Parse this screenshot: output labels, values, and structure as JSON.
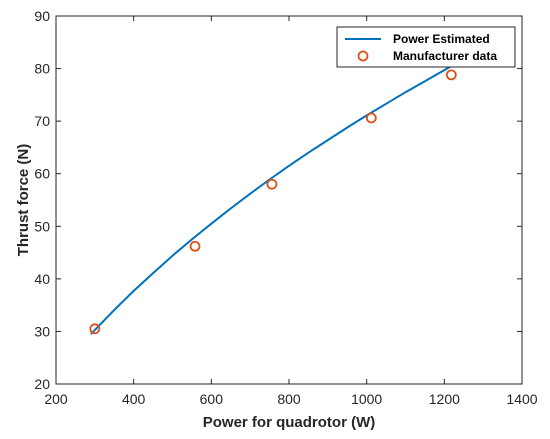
{
  "chart_data": {
    "type": "line",
    "xlabel": "Power for quadrotor (W)",
    "ylabel": "Thrust force (N)",
    "xlim": [
      200,
      1400
    ],
    "ylim": [
      20,
      90
    ],
    "x_ticks": [
      "200",
      "400",
      "600",
      "800",
      "1000",
      "1200",
      "1400"
    ],
    "y_ticks": [
      "20",
      "30",
      "40",
      "50",
      "60",
      "70",
      "80",
      "90"
    ],
    "grid": false,
    "legend_position": "top-right",
    "series": [
      {
        "name": "Power Estimated",
        "type": "line",
        "color": "#0072BD",
        "x": [
          290,
          350,
          400,
          450,
          500,
          550,
          600,
          650,
          700,
          750,
          800,
          850,
          900,
          950,
          1000,
          1050,
          1100,
          1150,
          1200,
          1250,
          1300
        ],
        "y": [
          29.5,
          34.1,
          37.7,
          41.1,
          44.4,
          47.5,
          50.5,
          53.4,
          56.2,
          58.9,
          61.5,
          64.0,
          66.4,
          68.8,
          71.1,
          73.3,
          75.5,
          77.6,
          79.7,
          81.8,
          83.8
        ]
      },
      {
        "name": "Manufacturer data",
        "type": "scatter",
        "color": "#D95319",
        "x": [
          300,
          558,
          756,
          1012,
          1218
        ],
        "y": [
          30.5,
          46.2,
          58.0,
          70.6,
          78.8
        ]
      }
    ]
  }
}
